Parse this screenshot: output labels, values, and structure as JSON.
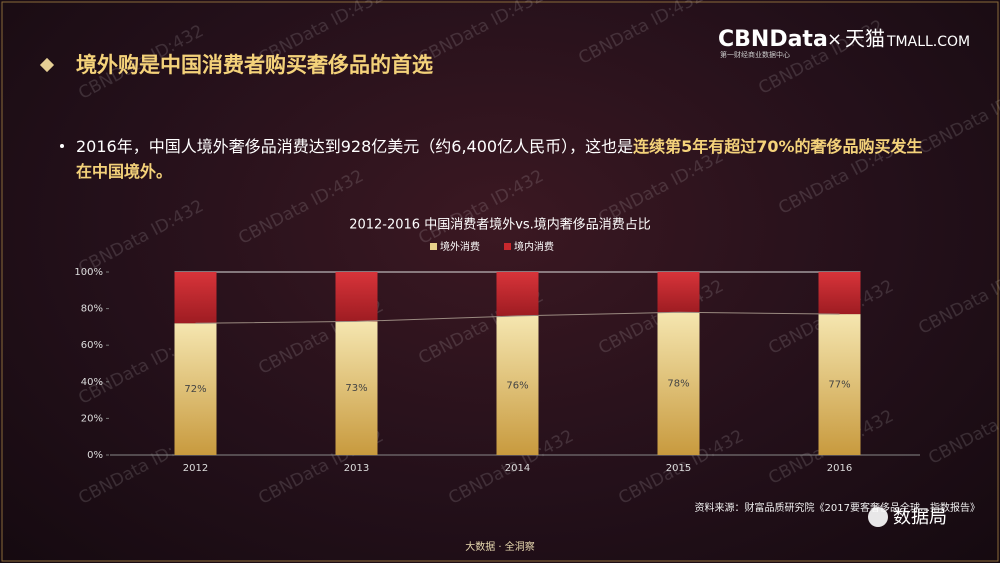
{
  "header": {
    "title": "境外购是中国消费者购买奢侈品的首选",
    "logo": "CBNData",
    "logo_times": "×",
    "logo_partner": "天猫",
    "logo_partner_en": "TMALL.COM",
    "logo_tagline": "第一财经商业数据中心"
  },
  "bullet": {
    "text": "2016年，中国人境外奢侈品消费达到928亿美元（约6,400亿人民币），这也是",
    "highlight": "连续第5年有超过70%的奢侈品购买发生在中国境外。"
  },
  "chart_data": {
    "type": "stacked_bar",
    "title": "2012-2016 中国消费者境外vs.境内奢侈品消费占比",
    "categories": [
      "2012",
      "2013",
      "2014",
      "2015",
      "2016"
    ],
    "series": [
      {
        "name": "境外消费",
        "color": "#e8d08a",
        "values": [
          72,
          73,
          76,
          78,
          77
        ],
        "value_labels": [
          "72%",
          "73%",
          "76%",
          "78%",
          "77%"
        ]
      },
      {
        "name": "境内消费",
        "color": "#c8282d",
        "values": [
          28,
          27,
          24,
          22,
          23
        ]
      }
    ],
    "ylim": [
      0,
      100
    ],
    "yticks": [
      {
        "value": 0,
        "label": "0%"
      },
      {
        "value": 20,
        "label": "20%"
      },
      {
        "value": 40,
        "label": "40%"
      },
      {
        "value": 60,
        "label": "60%"
      },
      {
        "value": 80,
        "label": "80%"
      },
      {
        "value": 100,
        "label": "100%"
      }
    ],
    "legend": "top",
    "grid": false,
    "trend_line": true
  },
  "source": "资料来源：财富品质研究院《2017要客奢侈品全球…指数报告》",
  "footer": "大数据 · 全洞察",
  "watermark": "CBNData ID:432",
  "wechat": "数据局"
}
